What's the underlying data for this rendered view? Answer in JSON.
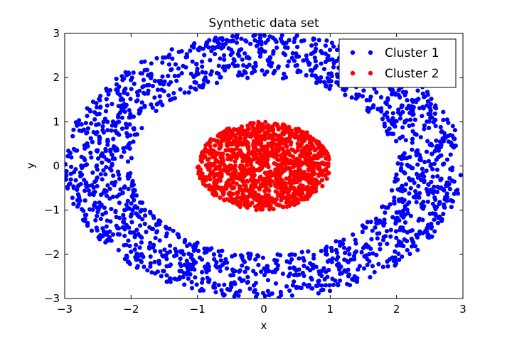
{
  "chart_data": {
    "type": "scatter",
    "title": "Synthetic data set",
    "xlabel": "x",
    "ylabel": "y",
    "xlim": [
      -3,
      3
    ],
    "ylim": [
      -3,
      3
    ],
    "xticks": [
      -3,
      -2,
      -1,
      0,
      1,
      2,
      3
    ],
    "yticks": [
      -3,
      -2,
      -1,
      0,
      1,
      2,
      3
    ],
    "xtick_labels": [
      "−3",
      "−2",
      "−1",
      "0",
      "1",
      "2",
      "3"
    ],
    "ytick_labels": [
      "−3",
      "−2",
      "−1",
      "0",
      "1",
      "2",
      "3"
    ],
    "grid": false,
    "legend_position": "top-right",
    "series": [
      {
        "name": "Cluster 1",
        "color": "#0000ff",
        "shape": "annulus",
        "center": [
          0,
          0
        ],
        "inner_radius": 2.0,
        "outer_radius": 3.0,
        "approx_points": 1800
      },
      {
        "name": "Cluster 2",
        "color": "#ff0000",
        "shape": "disk",
        "center": [
          0,
          0
        ],
        "radius": 1.0,
        "approx_points": 1200
      }
    ]
  }
}
